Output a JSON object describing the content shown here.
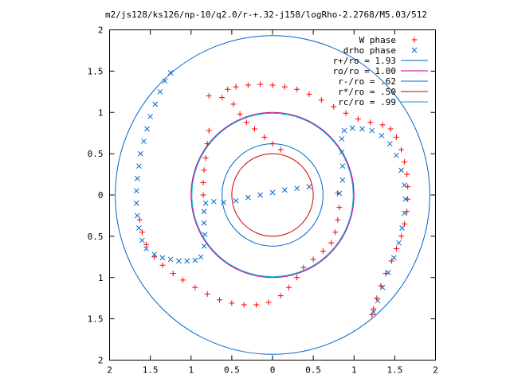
{
  "chart_data": {
    "type": "scatter",
    "title": "m2/js128/ks126/np-10/q2.0/r-+.32-j158/logRho-2.2768/M5.03/512",
    "xlim": [
      -2,
      2
    ],
    "ylim": [
      -2,
      2
    ],
    "x_tick_values": [
      -2,
      -1.5,
      -1,
      -0.5,
      0,
      0.5,
      1,
      1.5,
      2
    ],
    "x_tick_labels": [
      "2",
      "1.5",
      "1",
      "0.5",
      "0",
      "0.5",
      "1",
      "1.5",
      "2"
    ],
    "y_tick_values": [
      2,
      1.5,
      1,
      0.5,
      0,
      -0.5,
      -1,
      -1.5,
      -2
    ],
    "y_tick_labels": [
      "2",
      "1.5",
      "1",
      "0.5",
      "0",
      "0.5",
      "1",
      "1.5",
      "2"
    ],
    "grid": false,
    "legend_position": "top-right",
    "series": [
      {
        "name": "W phase",
        "kind": "points",
        "marker": "plus",
        "color": "#ff0000",
        "points": [
          [
            -0.78,
            1.2
          ],
          [
            -0.62,
            1.18
          ],
          [
            -0.48,
            1.1
          ],
          [
            -0.4,
            0.98
          ],
          [
            -0.32,
            0.88
          ],
          [
            -0.22,
            0.8
          ],
          [
            -0.1,
            0.7
          ],
          [
            0.0,
            0.62
          ],
          [
            0.1,
            0.55
          ],
          [
            -0.55,
            1.28
          ],
          [
            -0.45,
            1.31
          ],
          [
            -0.3,
            1.33
          ],
          [
            -0.15,
            1.34
          ],
          [
            0.0,
            1.33
          ],
          [
            0.15,
            1.31
          ],
          [
            0.3,
            1.28
          ],
          [
            0.45,
            1.22
          ],
          [
            0.6,
            1.15
          ],
          [
            0.75,
            1.07
          ],
          [
            0.9,
            0.99
          ],
          [
            1.05,
            0.92
          ],
          [
            1.2,
            0.88
          ],
          [
            1.35,
            0.85
          ],
          [
            1.45,
            0.8
          ],
          [
            1.52,
            0.7
          ],
          [
            1.58,
            0.55
          ],
          [
            1.62,
            0.4
          ],
          [
            1.65,
            0.25
          ],
          [
            1.66,
            0.1
          ],
          [
            1.66,
            -0.05
          ],
          [
            1.65,
            -0.2
          ],
          [
            1.62,
            -0.35
          ],
          [
            1.58,
            -0.5
          ],
          [
            1.52,
            -0.65
          ],
          [
            1.46,
            -0.8
          ],
          [
            1.39,
            -0.95
          ],
          [
            1.33,
            -1.1
          ],
          [
            1.28,
            -1.25
          ],
          [
            1.24,
            -1.38
          ],
          [
            1.22,
            -1.45
          ],
          [
            -0.78,
            0.78
          ],
          [
            -0.8,
            0.62
          ],
          [
            -0.82,
            0.45
          ],
          [
            -0.84,
            0.3
          ],
          [
            -0.85,
            0.15
          ],
          [
            -0.85,
            0.0
          ],
          [
            0.8,
            0.02
          ],
          [
            0.82,
            -0.15
          ],
          [
            0.8,
            -0.3
          ],
          [
            0.77,
            -0.45
          ],
          [
            0.72,
            -0.58
          ],
          [
            0.62,
            -0.68
          ],
          [
            0.5,
            -0.78
          ],
          [
            0.38,
            -0.88
          ],
          [
            0.3,
            -1.0
          ],
          [
            0.2,
            -1.12
          ],
          [
            0.1,
            -1.22
          ],
          [
            -0.05,
            -1.3
          ],
          [
            -0.2,
            -1.33
          ],
          [
            -0.35,
            -1.33
          ],
          [
            -0.5,
            -1.31
          ],
          [
            -0.65,
            -1.27
          ],
          [
            -0.8,
            -1.2
          ],
          [
            -0.95,
            -1.12
          ],
          [
            -1.1,
            -1.03
          ],
          [
            -1.22,
            -0.95
          ],
          [
            -1.35,
            -0.85
          ],
          [
            -1.45,
            -0.75
          ],
          [
            -1.55,
            -0.6
          ],
          [
            -1.6,
            -0.45
          ],
          [
            -1.63,
            -0.3
          ]
        ]
      },
      {
        "name": "drho phase",
        "kind": "points",
        "marker": "cross",
        "color": "#0066cc",
        "points": [
          [
            -1.25,
            1.48
          ],
          [
            -1.32,
            1.38
          ],
          [
            -1.38,
            1.25
          ],
          [
            -1.44,
            1.1
          ],
          [
            -1.5,
            0.95
          ],
          [
            -1.54,
            0.8
          ],
          [
            -1.58,
            0.65
          ],
          [
            -1.62,
            0.5
          ],
          [
            -1.64,
            0.35
          ],
          [
            -1.66,
            0.2
          ],
          [
            -1.67,
            0.05
          ],
          [
            -1.67,
            -0.1
          ],
          [
            -1.66,
            -0.25
          ],
          [
            -1.64,
            -0.4
          ],
          [
            -1.6,
            -0.55
          ],
          [
            -1.55,
            -0.65
          ],
          [
            -1.45,
            -0.72
          ],
          [
            -1.35,
            -0.76
          ],
          [
            -1.25,
            -0.78
          ],
          [
            -1.15,
            -0.8
          ],
          [
            -1.05,
            -0.8
          ],
          [
            -0.95,
            -0.79
          ],
          [
            -0.88,
            -0.75
          ],
          [
            -0.84,
            -0.62
          ],
          [
            -0.83,
            -0.48
          ],
          [
            -0.84,
            -0.34
          ],
          [
            -0.84,
            -0.2
          ],
          [
            -0.82,
            -0.1
          ],
          [
            -0.72,
            -0.08
          ],
          [
            -0.6,
            -0.09
          ],
          [
            -0.45,
            -0.07
          ],
          [
            -0.3,
            -0.03
          ],
          [
            -0.15,
            0.0
          ],
          [
            0.0,
            0.03
          ],
          [
            0.15,
            0.06
          ],
          [
            0.3,
            0.08
          ],
          [
            0.45,
            0.1
          ],
          [
            0.82,
            0.02
          ],
          [
            0.86,
            0.18
          ],
          [
            0.86,
            0.35
          ],
          [
            0.85,
            0.52
          ],
          [
            0.85,
            0.68
          ],
          [
            0.88,
            0.78
          ],
          [
            0.98,
            0.81
          ],
          [
            1.1,
            0.8
          ],
          [
            1.22,
            0.78
          ],
          [
            1.34,
            0.72
          ],
          [
            1.44,
            0.62
          ],
          [
            1.52,
            0.48
          ],
          [
            1.58,
            0.3
          ],
          [
            1.62,
            0.12
          ],
          [
            1.63,
            -0.05
          ],
          [
            1.62,
            -0.22
          ],
          [
            1.59,
            -0.4
          ],
          [
            1.55,
            -0.58
          ],
          [
            1.49,
            -0.76
          ],
          [
            1.42,
            -0.94
          ],
          [
            1.35,
            -1.12
          ],
          [
            1.29,
            -1.28
          ],
          [
            1.24,
            -1.42
          ]
        ]
      },
      {
        "name": "r+/ro = 1.93",
        "kind": "circle",
        "radius": 1.93,
        "color": "#0066cc"
      },
      {
        "name": "ro/ro = 1.00",
        "kind": "circle",
        "radius": 1.0,
        "color": "#cc0099"
      },
      {
        "name": "r-/ro = .62",
        "kind": "circle",
        "radius": 0.62,
        "color": "#0066cc"
      },
      {
        "name": "r*/ro = .50",
        "kind": "circle",
        "radius": 0.5,
        "color": "#cc0000"
      },
      {
        "name": "rc/ro = .99",
        "kind": "circle",
        "radius": 0.99,
        "color": "#00aacc"
      }
    ]
  }
}
